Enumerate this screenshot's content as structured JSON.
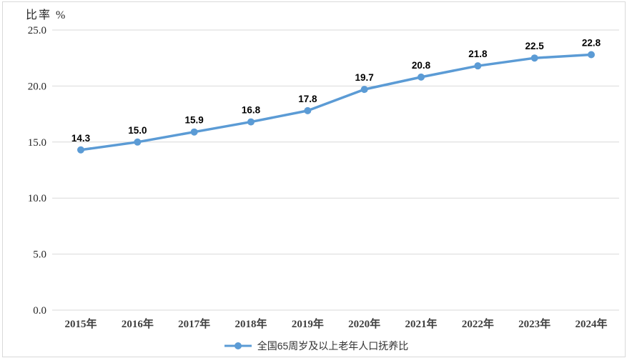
{
  "chart": {
    "y_axis_title": "比率 %"
  },
  "colors": {
    "line": "#5b9bd5",
    "marker": "#5b9bd5",
    "gridline": "#d9d9d9",
    "frame_border": "#d9d9d9",
    "y_tick_label": "#262626",
    "x_tick_label": "#404040",
    "data_label": "#000000",
    "legend_text": "#333333",
    "background": "#ffffff"
  },
  "chart_data": {
    "type": "line",
    "title": "",
    "ylabel": "比率 %",
    "xlabel": "",
    "categories": [
      "2015年",
      "2016年",
      "2017年",
      "2018年",
      "2019年",
      "2020年",
      "2021年",
      "2022年",
      "2023年",
      "2024年"
    ],
    "series": [
      {
        "name": "全国65周岁及以上老年人口抚养比",
        "values": [
          14.3,
          15.0,
          15.9,
          16.8,
          17.8,
          19.7,
          20.8,
          21.8,
          22.5,
          22.8
        ]
      }
    ],
    "ylim": [
      0,
      25
    ],
    "yticks": [
      0,
      5,
      10,
      15,
      20,
      25
    ],
    "ytick_decimals": 1,
    "grid": true,
    "data_labels": true,
    "legend_position": "bottom"
  }
}
